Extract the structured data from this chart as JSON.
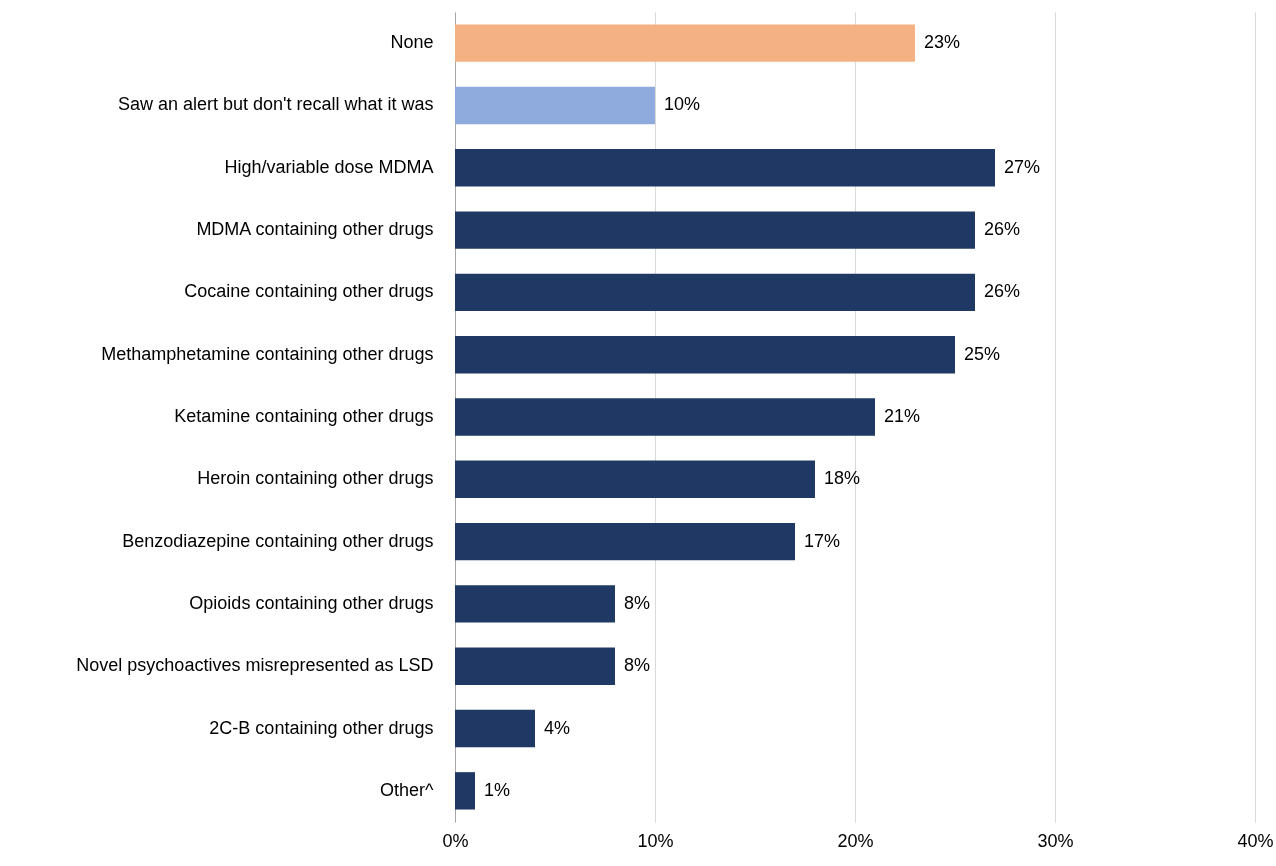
{
  "chart_data": {
    "type": "bar",
    "orientation": "horizontal",
    "categories": [
      "None",
      "Saw an alert but don't recall what it was",
      "High/variable dose MDMA",
      "MDMA containing other drugs",
      "Cocaine containing other drugs",
      "Methamphetamine containing other drugs",
      "Ketamine containing other drugs",
      "Heroin containing other drugs",
      "Benzodiazepine containing other drugs",
      "Opioids containing other drugs",
      "Novel psychoactives misrepresented as LSD",
      "2C-B containing other drugs",
      "Other^"
    ],
    "values": [
      23,
      10,
      27,
      26,
      26,
      25,
      21,
      18,
      17,
      8,
      8,
      4,
      1
    ],
    "value_labels": [
      "23%",
      "10%",
      "27%",
      "26%",
      "26%",
      "25%",
      "21%",
      "18%",
      "17%",
      "8%",
      "8%",
      "4%",
      "1%"
    ],
    "colors": [
      "#f4b183",
      "#8faadc",
      "#203864",
      "#203864",
      "#203864",
      "#203864",
      "#203864",
      "#203864",
      "#203864",
      "#203864",
      "#203864",
      "#203864",
      "#203864"
    ],
    "xlim": [
      0,
      40
    ],
    "xticks": [
      {
        "value": 0,
        "label": "0%"
      },
      {
        "value": 10,
        "label": "10%"
      },
      {
        "value": 20,
        "label": "20%"
      },
      {
        "value": 30,
        "label": "30%"
      },
      {
        "value": 40,
        "label": "40%"
      }
    ],
    "grid": "x"
  }
}
